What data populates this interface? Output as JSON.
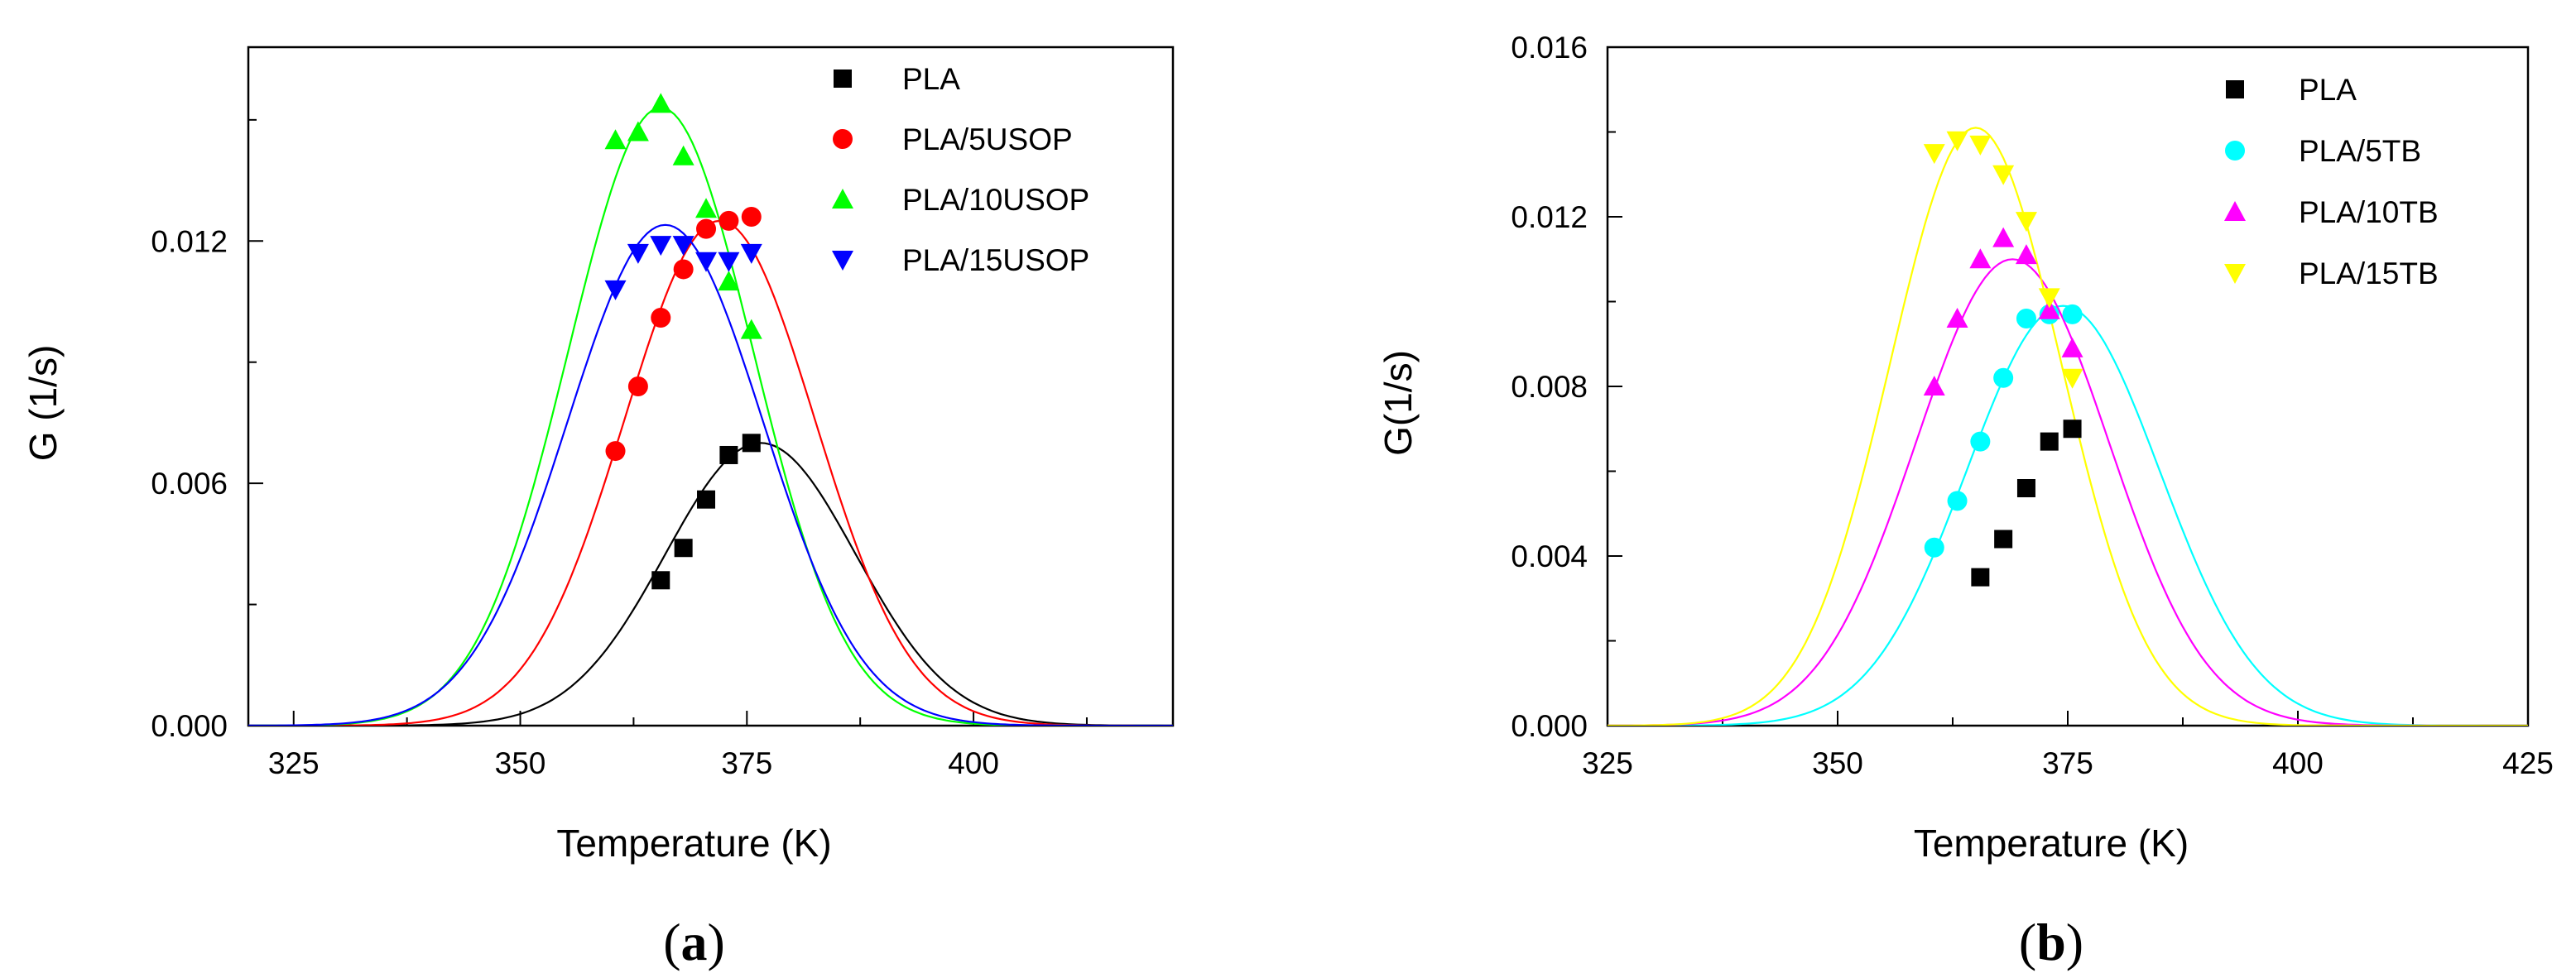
{
  "chart_data": [
    {
      "type": "scatter",
      "panel_label": "a",
      "title": "",
      "xlabel": "Temperature (K)",
      "ylabel": "G (1/s)",
      "xlim": [
        320,
        422
      ],
      "ylim": [
        0,
        0.0168
      ],
      "xticks": [
        325,
        350,
        375,
        400
      ],
      "xtick_labels": [
        "325",
        "350",
        "375",
        "400"
      ],
      "yticks": [
        0,
        0.006,
        0.012
      ],
      "ytick_labels": [
        "0.000",
        "0.006",
        "0.012"
      ],
      "legend_position": "top-right",
      "series": [
        {
          "name": "PLA",
          "color": "#000000",
          "marker": "square",
          "points": [
            [
              365.5,
              0.0036
            ],
            [
              368,
              0.0044
            ],
            [
              370.5,
              0.0056
            ],
            [
              373,
              0.0067
            ],
            [
              375.5,
              0.007
            ]
          ],
          "fit": {
            "peak": 0.007,
            "center": 376.5,
            "sigma": 10.5
          }
        },
        {
          "name": "PLA/5USOP",
          "color": "#ff0000",
          "marker": "circle",
          "points": [
            [
              360.5,
              0.0068
            ],
            [
              363,
              0.0084
            ],
            [
              365.5,
              0.0101
            ],
            [
              368,
              0.0113
            ],
            [
              370.5,
              0.0123
            ],
            [
              373,
              0.0125
            ],
            [
              375.5,
              0.0126
            ]
          ],
          "fit": {
            "peak": 0.0125,
            "center": 372,
            "sigma": 10.5
          }
        },
        {
          "name": "PLA/10USOP",
          "color": "#00ff00",
          "marker": "triangle-up",
          "points": [
            [
              360.5,
              0.0145
            ],
            [
              363,
              0.0147
            ],
            [
              365.5,
              0.0154
            ],
            [
              368,
              0.0141
            ],
            [
              370.5,
              0.0128
            ],
            [
              373,
              0.011
            ],
            [
              375.5,
              0.0098
            ]
          ],
          "fit": {
            "peak": 0.0153,
            "center": 365.5,
            "sigma": 10.2
          }
        },
        {
          "name": "PLA/15USOP",
          "color": "#0000ff",
          "marker": "triangle-down",
          "points": [
            [
              360.5,
              0.0108
            ],
            [
              363,
              0.0117
            ],
            [
              365.5,
              0.0119
            ],
            [
              368,
              0.0119
            ],
            [
              370.5,
              0.0115
            ],
            [
              373,
              0.0115
            ],
            [
              375.5,
              0.0117
            ]
          ],
          "fit": {
            "peak": 0.0124,
            "center": 366,
            "sigma": 10.8
          }
        }
      ]
    },
    {
      "type": "scatter",
      "panel_label": "b",
      "title": "",
      "xlabel": "Temperature (K)",
      "ylabel": "G(1/s)",
      "xlim": [
        325,
        425
      ],
      "ylim": [
        0,
        0.016
      ],
      "xticks": [
        325,
        350,
        375,
        400,
        425
      ],
      "xtick_labels": [
        "325",
        "350",
        "375",
        "400",
        "425"
      ],
      "yticks": [
        0,
        0.004,
        0.008,
        0.012,
        0.016
      ],
      "ytick_labels": [
        "0.000",
        "0.004",
        "0.008",
        "0.012",
        "0.016"
      ],
      "legend_position": "top-right",
      "series": [
        {
          "name": "PLA",
          "color": "#000000",
          "marker": "square",
          "points": [
            [
              365.5,
              0.0035
            ],
            [
              368,
              0.0044
            ],
            [
              370.5,
              0.0056
            ],
            [
              373,
              0.0067
            ],
            [
              375.5,
              0.007
            ]
          ],
          "fit": null
        },
        {
          "name": "PLA/5TB",
          "color": "#00ffff",
          "marker": "circle",
          "points": [
            [
              360.5,
              0.0042
            ],
            [
              363,
              0.0053
            ],
            [
              365.5,
              0.0067
            ],
            [
              368,
              0.0082
            ],
            [
              370.5,
              0.0096
            ],
            [
              373,
              0.0097
            ],
            [
              375.5,
              0.0097
            ]
          ],
          "fit": {
            "peak": 0.0099,
            "center": 374.5,
            "sigma": 10.5
          }
        },
        {
          "name": "PLA/10TB",
          "color": "#ff00ff",
          "marker": "triangle-up",
          "points": [
            [
              360.5,
              0.008
            ],
            [
              363,
              0.0096
            ],
            [
              365.5,
              0.011
            ],
            [
              368,
              0.0115
            ],
            [
              370.5,
              0.0111
            ],
            [
              373,
              0.0098
            ],
            [
              375.5,
              0.0089
            ]
          ],
          "fit": {
            "peak": 0.011,
            "center": 369,
            "sigma": 10.5
          }
        },
        {
          "name": "PLA/15TB",
          "color": "#ffff00",
          "marker": "triangle-down",
          "points": [
            [
              360.5,
              0.0135
            ],
            [
              363,
              0.0138
            ],
            [
              365.5,
              0.0137
            ],
            [
              368,
              0.013
            ],
            [
              370.5,
              0.0119
            ],
            [
              373,
              0.0101
            ],
            [
              375.5,
              0.0082
            ]
          ],
          "fit": {
            "peak": 0.0141,
            "center": 365,
            "sigma": 9.3
          }
        }
      ]
    }
  ]
}
